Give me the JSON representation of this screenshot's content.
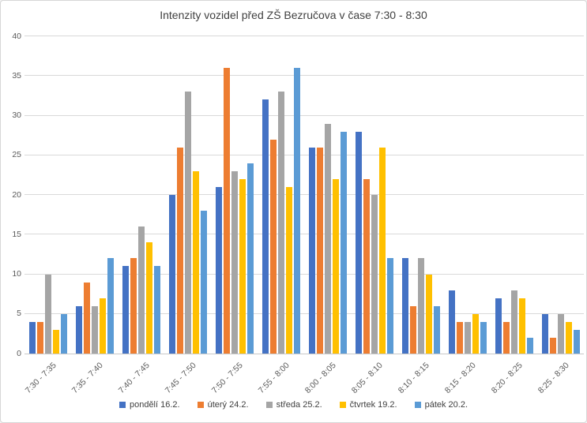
{
  "window": {
    "background": "#ffffff",
    "border_color": "#d6d6d6"
  },
  "chart_data": {
    "type": "bar",
    "title": "Intenzity vozidel před ZŠ Bezručova v čase 7:30 - 8:30",
    "xlabel": "",
    "ylabel": "",
    "categories": [
      "7:30 - 7:35",
      "7:35 - 7:40",
      "7:40 - 7:45",
      "7:45 - 7:50",
      "7:50 - 7:55",
      "7:55 - 8:00",
      "8:00 - 8:05",
      "8:05 - 8:10",
      "8:10 - 8:15",
      "8:15 - 8:20",
      "8:20 - 8:25",
      "8:25 - 8:30"
    ],
    "series": [
      {
        "name": "pondělí 16.2.",
        "color": "#4472C4",
        "values": [
          4,
          6,
          11,
          20,
          21,
          32,
          26,
          28,
          12,
          8,
          7,
          5
        ]
      },
      {
        "name": "úterý 24.2.",
        "color": "#ED7D31",
        "values": [
          4,
          9,
          12,
          26,
          36,
          27,
          26,
          22,
          6,
          4,
          4,
          2
        ]
      },
      {
        "name": "středa 25.2.",
        "color": "#A5A5A5",
        "values": [
          10,
          6,
          16,
          33,
          23,
          33,
          29,
          20,
          12,
          4,
          8,
          5
        ]
      },
      {
        "name": "čtvrtek 19.2.",
        "color": "#FFC000",
        "values": [
          3,
          7,
          14,
          23,
          22,
          21,
          22,
          26,
          10,
          5,
          7,
          4
        ]
      },
      {
        "name": "pátek 20.2.",
        "color": "#5B9BD5",
        "values": [
          5,
          12,
          11,
          18,
          24,
          36,
          28,
          12,
          6,
          4,
          2,
          3
        ]
      }
    ],
    "ylim": [
      0,
      40
    ],
    "yticks": [
      0,
      5,
      10,
      15,
      20,
      25,
      30,
      35,
      40
    ],
    "grid": true,
    "legend_position": "bottom",
    "gridline_color": "#d9d9d9",
    "axis_text_color": "#595959",
    "title_color": "#404040"
  }
}
